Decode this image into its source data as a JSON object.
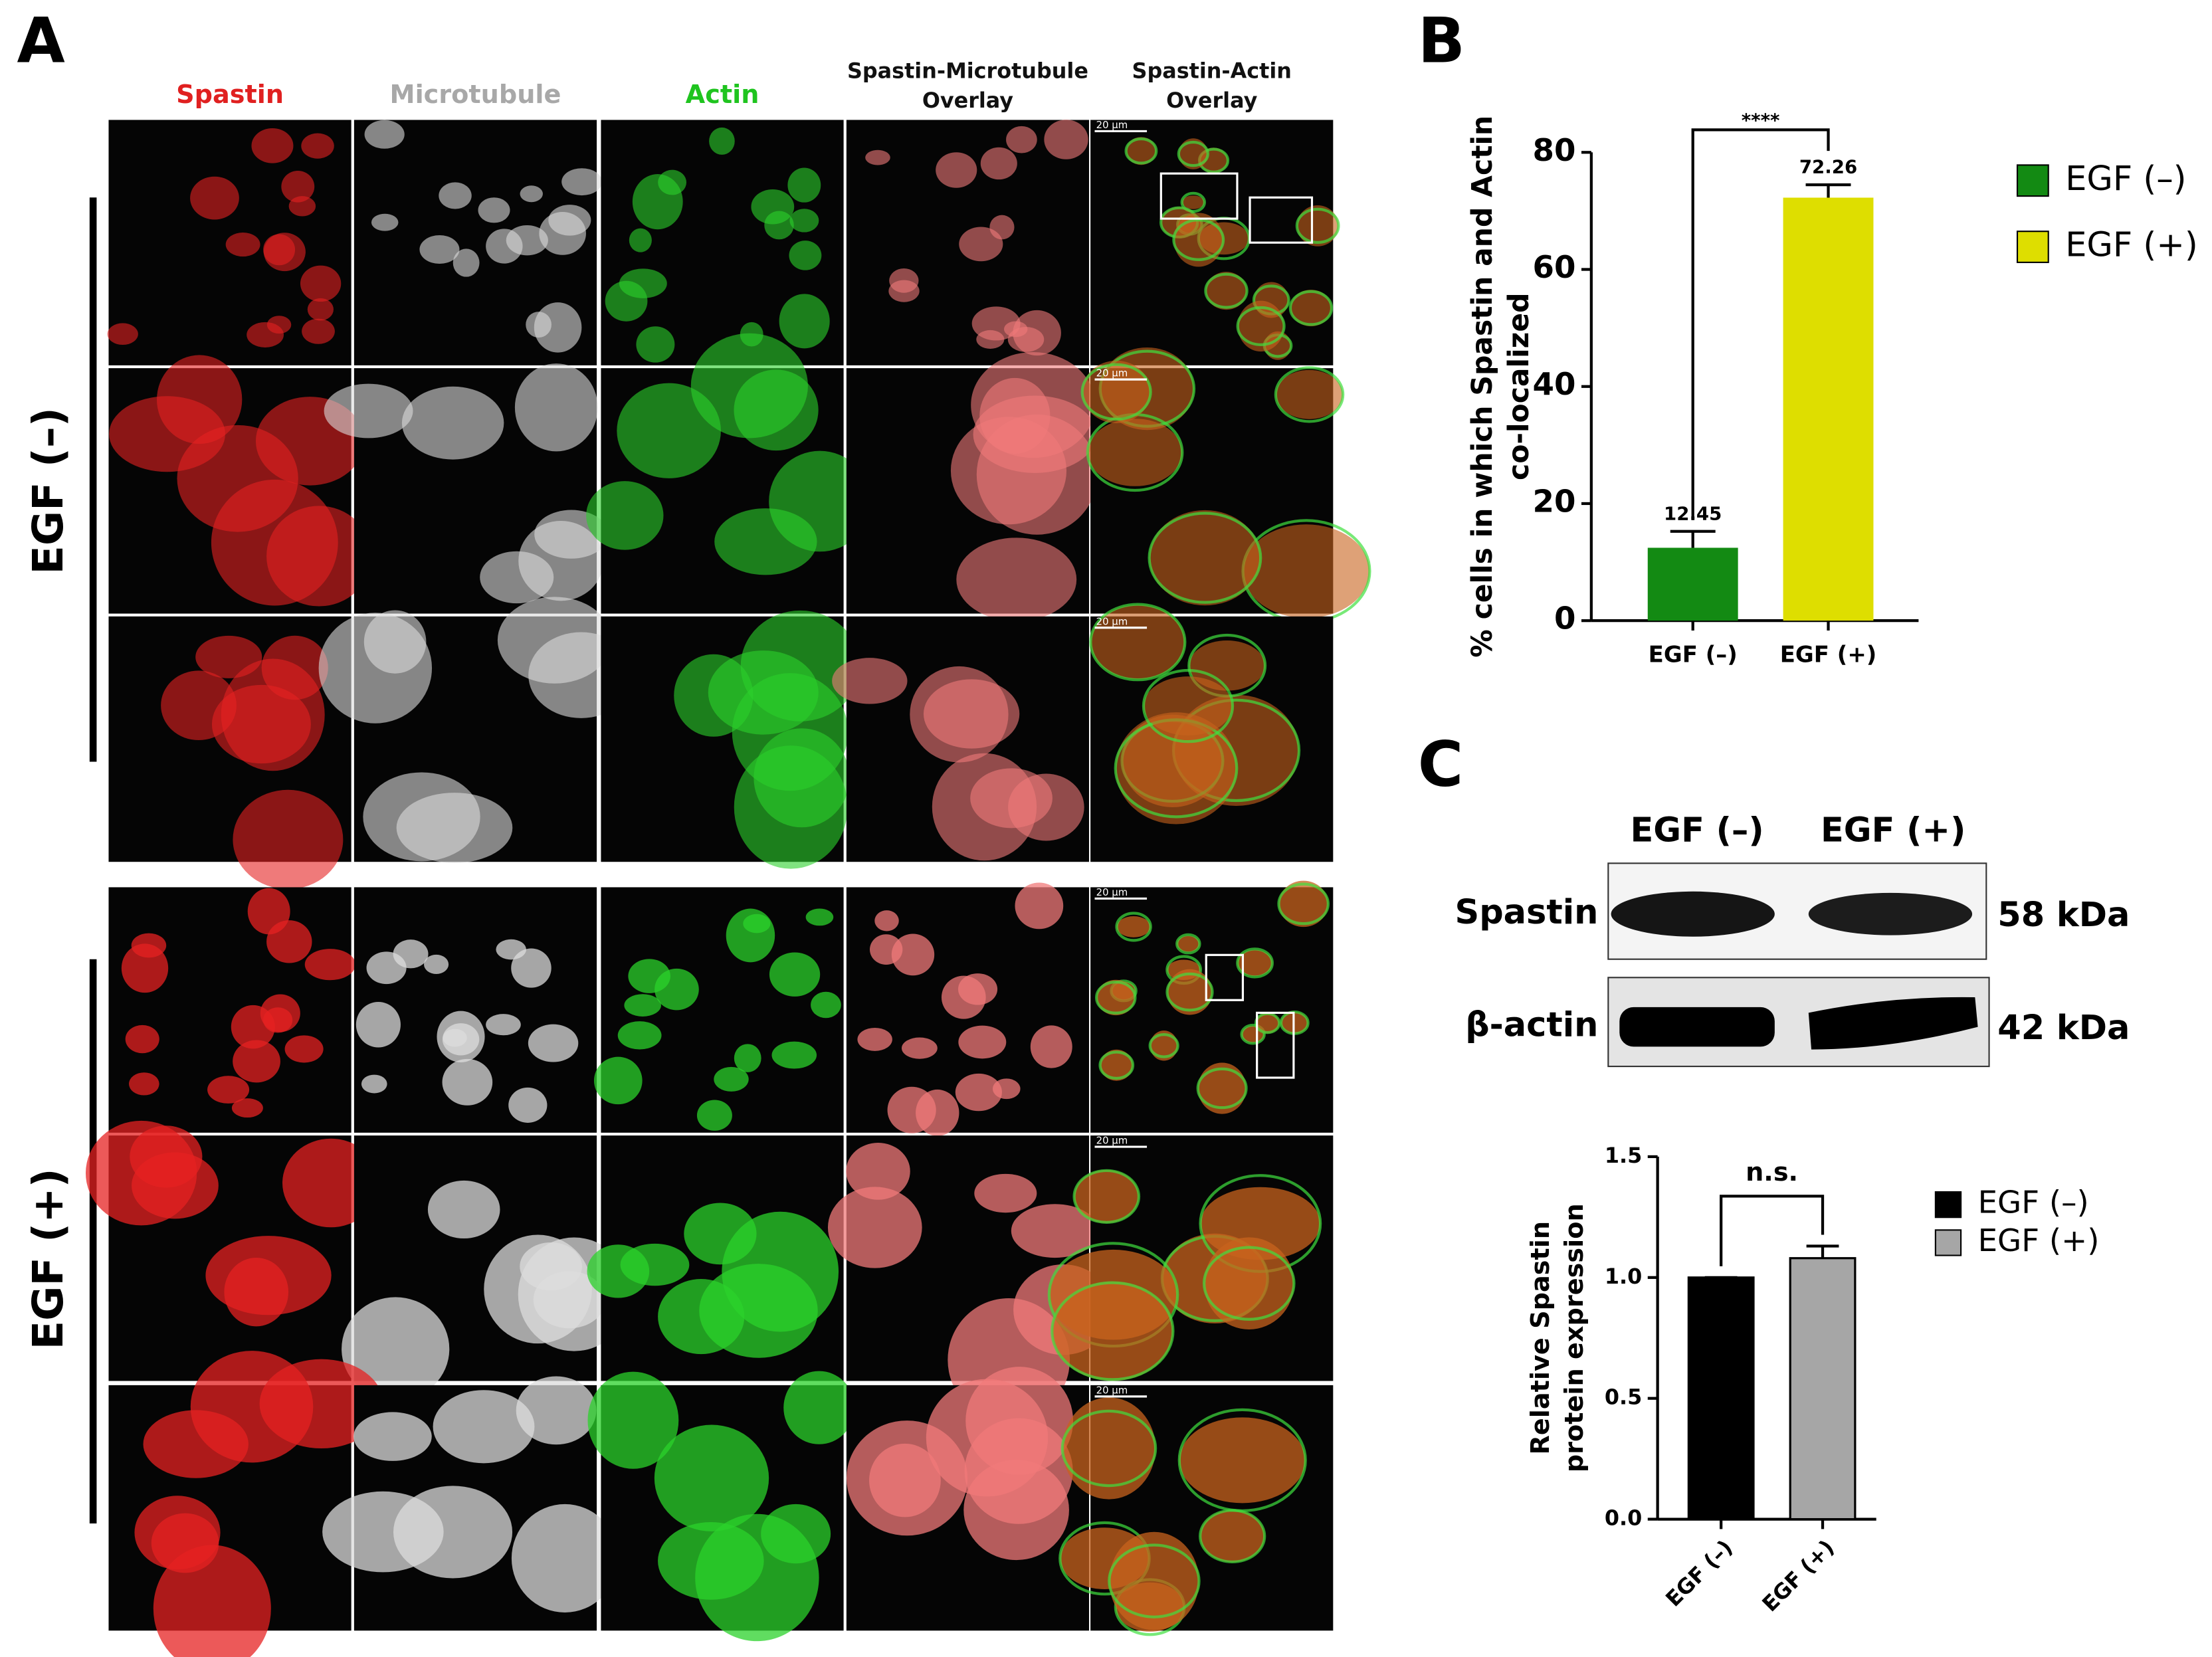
{
  "panels": [
    "A",
    "B",
    "C"
  ],
  "panel_a": {
    "columns": [
      {
        "lines": [
          "Spastin"
        ],
        "color": "#e02020"
      },
      {
        "lines": [
          "Microtubule"
        ],
        "color": "#a8a8a8"
      },
      {
        "lines": [
          "Actin"
        ],
        "color": "#1fc41f"
      },
      {
        "lines": [
          "Spastin-Microtubule",
          "Overlay"
        ],
        "color": "#111111"
      },
      {
        "lines": [
          "Spastin-Actin",
          "Overlay"
        ],
        "color": "#111111"
      }
    ],
    "groups": [
      "EGF (–)",
      "EGF (+)"
    ],
    "scale_bar": "20 µm"
  },
  "panel_c_blot": {
    "lanes": [
      "EGF (–)",
      "EGF (+)"
    ],
    "bands": [
      {
        "name": "Spastin",
        "size": "58 kDa"
      },
      {
        "name": "β-actin",
        "size": "42 kDa"
      }
    ]
  },
  "chart_data": [
    {
      "type": "bar",
      "y_label": [
        "% cells  in which Spastin and Actin",
        "co-localized"
      ],
      "categories": [
        "EGF (–)",
        "EGF (+)"
      ],
      "values": [
        12.45,
        72.26
      ],
      "errors": [
        2.8,
        2.2
      ],
      "colors": [
        "#138a13",
        "#dede00"
      ],
      "show_value_labels": true,
      "ylim": [
        0,
        80
      ],
      "yticks": [
        0,
        20,
        40,
        60,
        80
      ],
      "significance": "****",
      "legend": "right"
    },
    {
      "type": "bar",
      "y_label": [
        "Relative Spastin",
        "protein expression"
      ],
      "categories": [
        "EGF (–)",
        "EGF (+)"
      ],
      "values": [
        1.0,
        1.08
      ],
      "errors": [
        0,
        0.05
      ],
      "colors": [
        "#000000",
        "#a6a6a6"
      ],
      "show_value_labels": false,
      "ylim": [
        0,
        1.5
      ],
      "yticks": [
        {
          "value": 0,
          "label": "0.0"
        },
        {
          "value": 0.5,
          "label": "0.5"
        },
        {
          "value": 1,
          "label": "1.0"
        },
        {
          "value": 1.5,
          "label": "1.5"
        }
      ],
      "significance": "n.s.",
      "legend": "right"
    }
  ]
}
